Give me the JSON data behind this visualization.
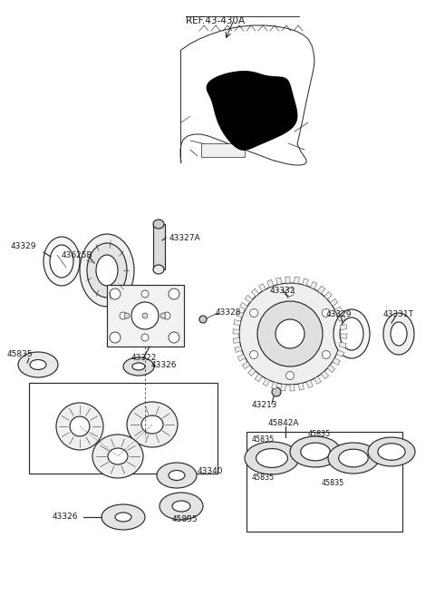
{
  "bg_color": "#ffffff",
  "line_color": "#2a2a2a",
  "label_color": "#1a1a1a",
  "lw": 0.85,
  "fs": 6.5,
  "labels": {
    "ref": "REF.43-430A",
    "p43329": "43329",
    "p43625B": "43625B",
    "p43327A": "43327A",
    "p43322": "43322",
    "p43328": "43328",
    "p43332": "43332",
    "p43329r": "43329",
    "p43331T": "43331T",
    "p45835": "45835",
    "p43326": "43326",
    "p43213": "43213",
    "p45842A": "45842A",
    "p43340": "43340",
    "p43326b": "43326"
  }
}
